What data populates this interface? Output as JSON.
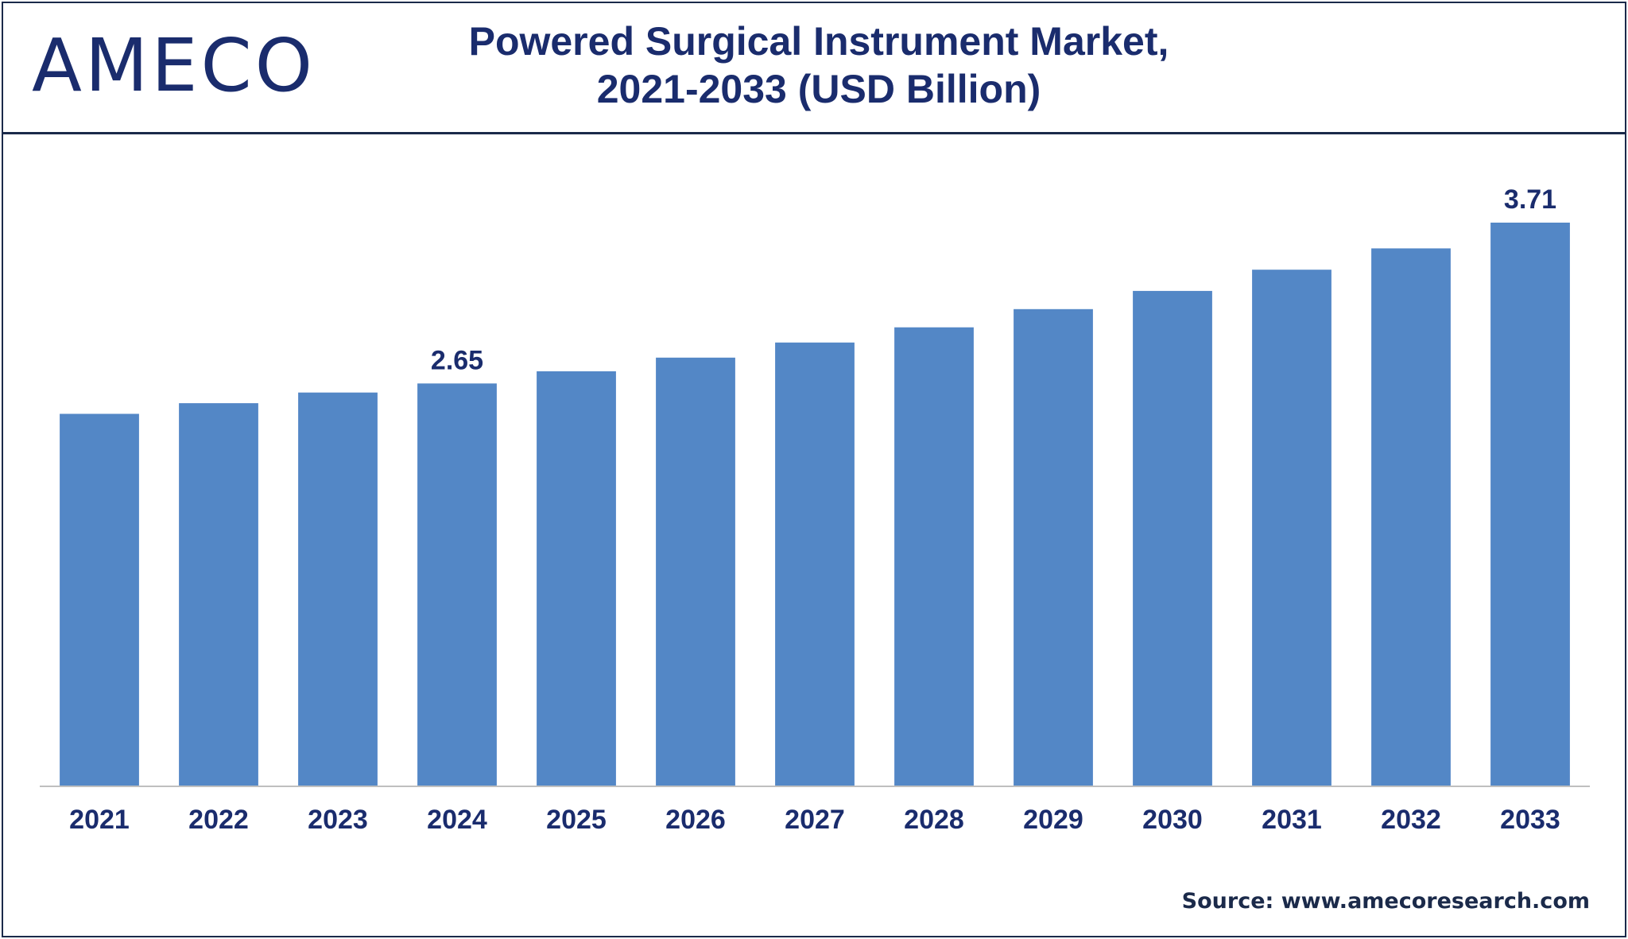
{
  "header": {
    "logo_text": "AMECO",
    "title_line1": "Powered Surgical Instrument Market,",
    "title_line2": "2021-2033 (USD Billion)"
  },
  "colors": {
    "bar": "#5387c6",
    "text": "#1a2c6d",
    "frame": "#1b2a4a",
    "axis": "#bfbfbf"
  },
  "chart_data": {
    "type": "bar",
    "categories": [
      "2021",
      "2022",
      "2023",
      "2024",
      "2025",
      "2026",
      "2027",
      "2028",
      "2029",
      "2030",
      "2031",
      "2032",
      "2033"
    ],
    "values": [
      2.45,
      2.52,
      2.59,
      2.65,
      2.73,
      2.82,
      2.92,
      3.02,
      3.14,
      3.26,
      3.4,
      3.54,
      3.71
    ],
    "data_labels": {
      "2024": "2.65",
      "2033": "3.71"
    },
    "title": "Powered Surgical Instrument Market, 2021-2033 (USD Billion)",
    "xlabel": "",
    "ylabel": "",
    "ylim": [
      0,
      3.71
    ],
    "grid": false,
    "legend": "none"
  },
  "footer": {
    "source": "Source: www.amecoresearch.com"
  }
}
